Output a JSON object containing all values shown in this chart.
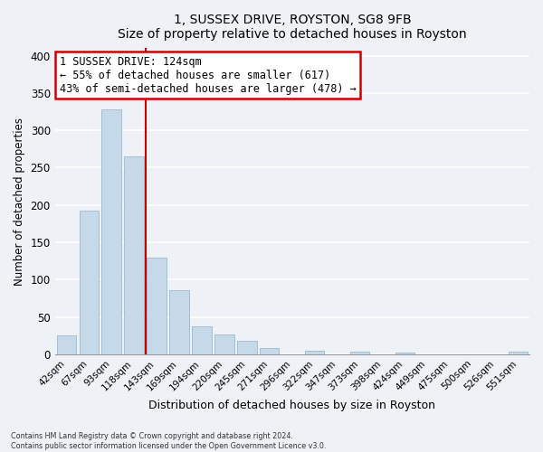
{
  "title1": "1, SUSSEX DRIVE, ROYSTON, SG8 9FB",
  "title2": "Size of property relative to detached houses in Royston",
  "xlabel": "Distribution of detached houses by size in Royston",
  "ylabel": "Number of detached properties",
  "bar_labels": [
    "42sqm",
    "67sqm",
    "93sqm",
    "118sqm",
    "143sqm",
    "169sqm",
    "194sqm",
    "220sqm",
    "245sqm",
    "271sqm",
    "296sqm",
    "322sqm",
    "347sqm",
    "373sqm",
    "398sqm",
    "424sqm",
    "449sqm",
    "475sqm",
    "500sqm",
    "526sqm",
    "551sqm"
  ],
  "bar_values": [
    25,
    193,
    328,
    265,
    130,
    86,
    38,
    26,
    18,
    8,
    0,
    5,
    0,
    4,
    0,
    2,
    0,
    0,
    0,
    0,
    3
  ],
  "bar_color": "#c6d9e8",
  "bar_edge_color": "#9ab8d0",
  "vline_x": 3.5,
  "vline_color": "#cc0000",
  "annotation_title": "1 SUSSEX DRIVE: 124sqm",
  "annotation_line1": "← 55% of detached houses are smaller (617)",
  "annotation_line2": "43% of semi-detached houses are larger (478) →",
  "annotation_box_color": "#ffffff",
  "annotation_border_color": "#cc0000",
  "footnote1": "Contains HM Land Registry data © Crown copyright and database right 2024.",
  "footnote2": "Contains public sector information licensed under the Open Government Licence v3.0.",
  "ylim": [
    0,
    410
  ],
  "yticks": [
    0,
    50,
    100,
    150,
    200,
    250,
    300,
    350,
    400
  ],
  "bg_color": "#eef2f7",
  "plot_bg_color": "#eef2f7",
  "grid_color": "#ffffff",
  "title1_fontsize": 11,
  "title2_fontsize": 10
}
